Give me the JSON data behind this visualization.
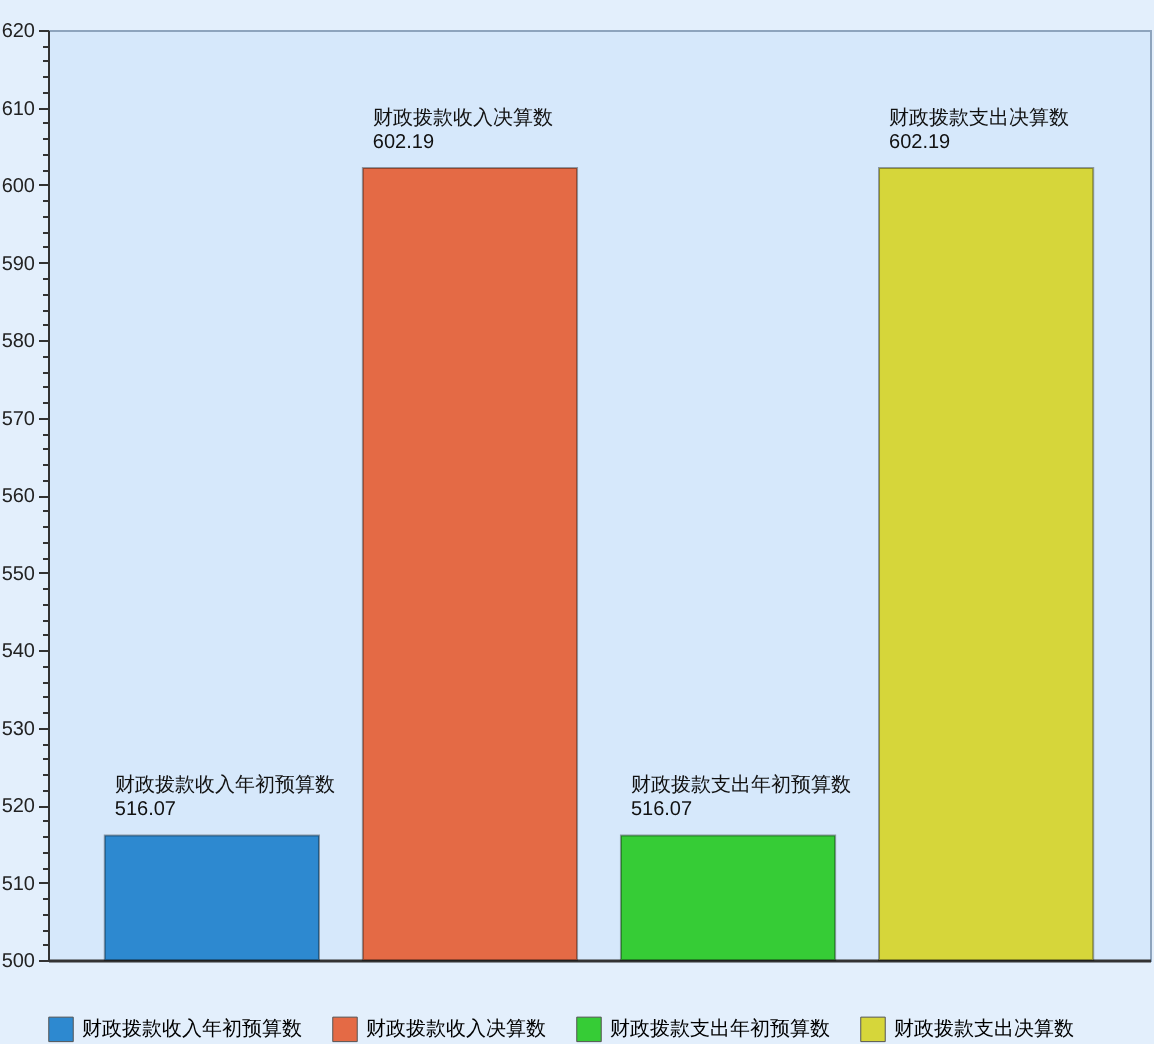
{
  "chart_data": {
    "type": "bar",
    "categories": [
      null,
      null,
      null,
      null
    ],
    "series": [
      {
        "name": "财政拨款收入年初预算数",
        "color": "#2d89d0",
        "values": [
          516.07,
          null,
          null,
          null
        ]
      },
      {
        "name": "财政拨款收入决算数",
        "color": "#e46a45",
        "values": [
          null,
          602.19,
          null,
          null
        ]
      },
      {
        "name": "财政拨款支出年初预算数",
        "color": "#36cc36",
        "values": [
          null,
          null,
          516.07,
          null
        ]
      },
      {
        "name": "财政拨款支出决算数",
        "color": "#d6d63a",
        "values": [
          null,
          null,
          null,
          602.19
        ]
      }
    ],
    "ylim": [
      500,
      620
    ],
    "yticks": [
      500,
      {
        "value": 502,
        "label": null
      },
      {
        "value": 504,
        "label": null
      },
      {
        "value": 506,
        "label": null
      },
      {
        "value": 508,
        "label": null
      },
      510,
      {
        "value": 512,
        "label": null
      },
      {
        "value": 514,
        "label": null
      },
      {
        "value": 516,
        "label": null
      },
      {
        "value": 518,
        "label": null
      },
      520,
      {
        "value": 522,
        "label": null
      },
      {
        "value": 524,
        "label": null
      },
      {
        "value": 526,
        "label": null
      },
      {
        "value": 528,
        "label": null
      },
      530,
      {
        "value": 532,
        "label": null
      },
      {
        "value": 534,
        "label": null
      },
      {
        "value": 536,
        "label": null
      },
      {
        "value": 538,
        "label": null
      },
      540,
      {
        "value": 542,
        "label": null
      },
      {
        "value": 544,
        "label": null
      },
      {
        "value": 546,
        "label": null
      },
      {
        "value": 548,
        "label": null
      },
      550,
      {
        "value": 552,
        "label": null
      },
      {
        "value": 554,
        "label": null
      },
      {
        "value": 556,
        "label": null
      },
      {
        "value": 558,
        "label": null
      },
      560,
      {
        "value": 562,
        "label": null
      },
      {
        "value": 564,
        "label": null
      },
      {
        "value": 566,
        "label": null
      },
      {
        "value": 568,
        "label": null
      },
      570,
      {
        "value": 572,
        "label": null
      },
      {
        "value": 574,
        "label": null
      },
      {
        "value": 576,
        "label": null
      },
      {
        "value": 578,
        "label": null
      },
      580,
      {
        "value": 582,
        "label": null
      },
      {
        "value": 584,
        "label": null
      },
      {
        "value": 586,
        "label": null
      },
      {
        "value": 588,
        "label": null
      },
      590,
      {
        "value": 592,
        "label": null
      },
      {
        "value": 594,
        "label": null
      },
      {
        "value": 596,
        "label": null
      },
      {
        "value": 598,
        "label": null
      },
      600,
      {
        "value": 602,
        "label": null
      },
      {
        "value": 604,
        "label": null
      },
      {
        "value": 606,
        "label": null
      },
      {
        "value": 608,
        "label": null
      },
      610,
      {
        "value": 612,
        "label": null
      },
      {
        "value": 614,
        "label": null
      },
      {
        "value": 616,
        "label": null
      },
      {
        "value": 618,
        "label": null
      },
      620
    ],
    "data_labels": true,
    "legend": "bottom"
  }
}
